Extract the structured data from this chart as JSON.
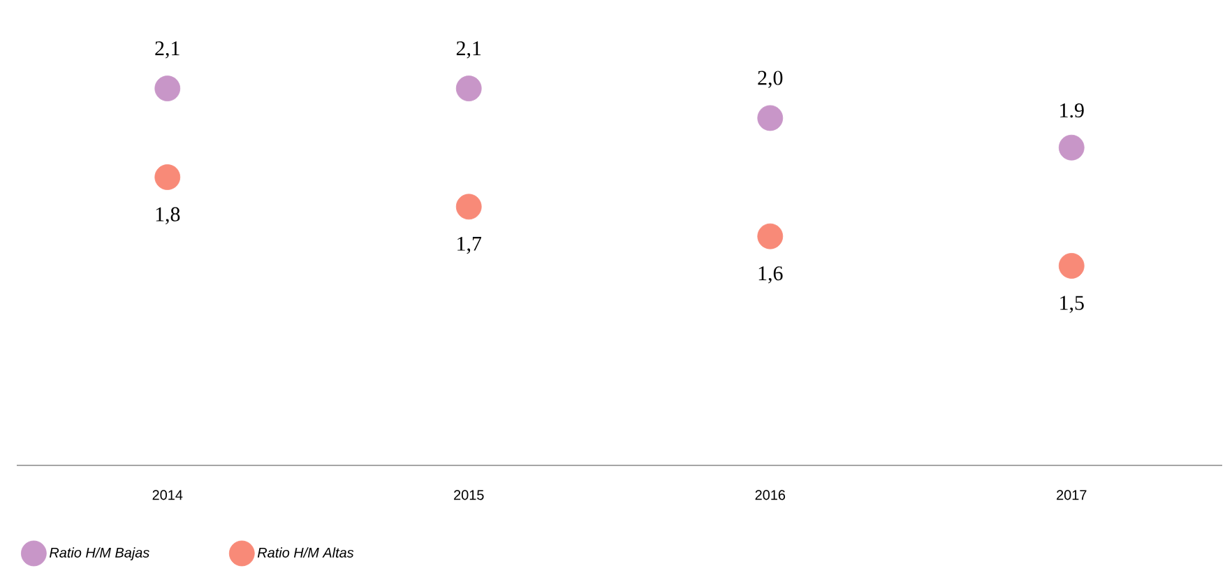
{
  "chart_data": {
    "type": "scatter",
    "categories": [
      "2014",
      "2015",
      "2016",
      "2017"
    ],
    "series": [
      {
        "name": "Ratio H/M Bajas",
        "color": "#c896c8",
        "values": [
          2.1,
          2.1,
          2.0,
          1.9
        ],
        "value_labels": [
          "2,1",
          "2,1",
          "2,0",
          "1.9"
        ]
      },
      {
        "name": "Ratio H/M Altas",
        "color": "#f88a78",
        "values": [
          1.8,
          1.7,
          1.6,
          1.5
        ],
        "value_labels": [
          "1,8",
          "1,7",
          "1,6",
          "1,5"
        ]
      }
    ],
    "tick_labels": "x",
    "marker": "circle",
    "legend": "bottom left",
    "grid": false
  }
}
